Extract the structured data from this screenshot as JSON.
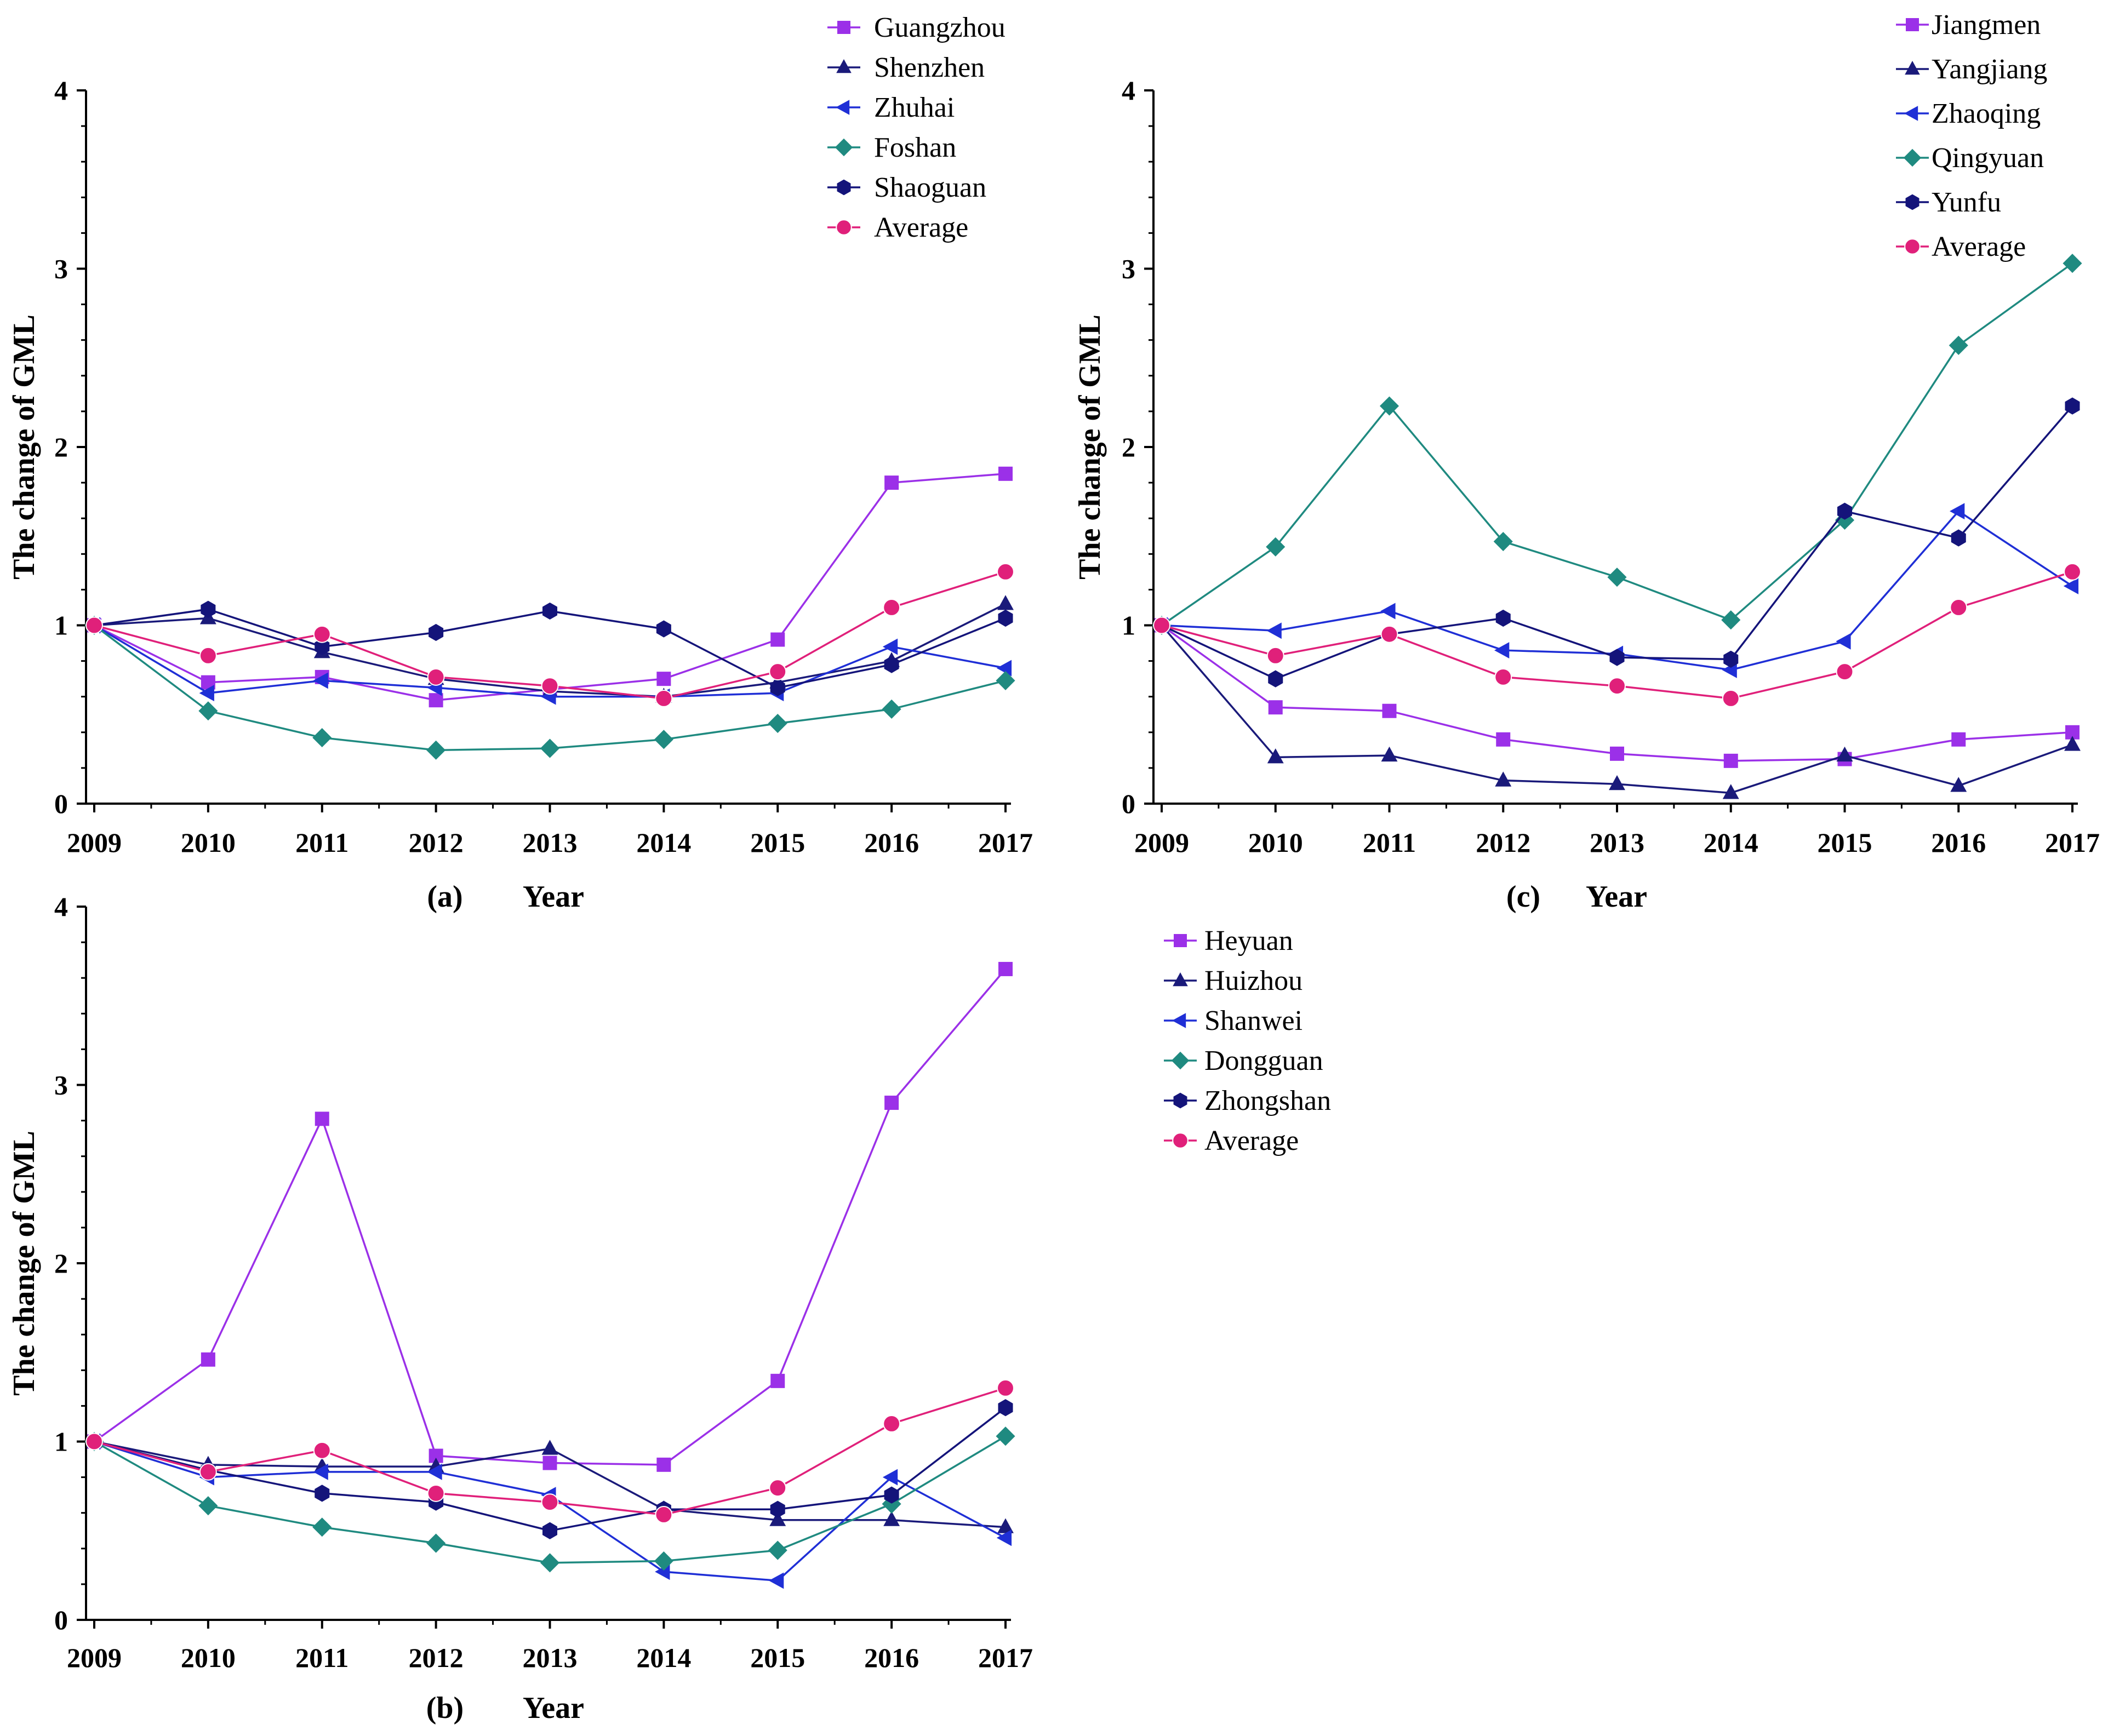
{
  "chart_data": [
    {
      "type": "line",
      "panel_label": "(a)",
      "xlabel": "Year",
      "ylabel": "The change of GML",
      "x": [
        "2009",
        "2010",
        "2011",
        "2012",
        "2013",
        "2014",
        "2015",
        "2016",
        "2017"
      ],
      "ylim": [
        0,
        4
      ],
      "yticks": [
        "0",
        "1",
        "2",
        "3",
        "4"
      ],
      "legend_position": "top-right",
      "series": [
        {
          "name": "Guangzhou",
          "marker": "square",
          "color": "#9b30e8",
          "values": [
            1.0,
            0.68,
            0.71,
            0.58,
            0.64,
            0.7,
            0.92,
            1.8,
            1.85
          ]
        },
        {
          "name": "Shenzhen",
          "marker": "triangle-up",
          "color": "#1a1a7a",
          "values": [
            1.0,
            1.04,
            0.85,
            0.7,
            0.63,
            0.6,
            0.68,
            0.8,
            1.12
          ]
        },
        {
          "name": "Zhuhai",
          "marker": "triangle-left",
          "color": "#1f2fd6",
          "values": [
            1.0,
            0.62,
            0.69,
            0.65,
            0.6,
            0.6,
            0.62,
            0.88,
            0.76
          ]
        },
        {
          "name": "Foshan",
          "marker": "diamond",
          "color": "#1f8a80",
          "values": [
            1.0,
            0.52,
            0.37,
            0.3,
            0.31,
            0.36,
            0.45,
            0.53,
            0.69
          ]
        },
        {
          "name": "Shaoguan",
          "marker": "hexagon",
          "color": "#14147a",
          "values": [
            1.0,
            1.09,
            0.88,
            0.96,
            1.08,
            0.98,
            0.65,
            0.78,
            1.04
          ]
        },
        {
          "name": "Average",
          "marker": "circle",
          "color": "#e0207a",
          "values": [
            1.0,
            0.83,
            0.95,
            0.71,
            0.66,
            0.59,
            0.74,
            1.1,
            1.3
          ]
        }
      ]
    },
    {
      "type": "line",
      "panel_label": "(b)",
      "xlabel": "Year",
      "ylabel": "The change of GML",
      "x": [
        "2009",
        "2010",
        "2011",
        "2012",
        "2013",
        "2014",
        "2015",
        "2016",
        "2017"
      ],
      "ylim": [
        0,
        4
      ],
      "yticks": [
        "0",
        "1",
        "2",
        "3",
        "4"
      ],
      "legend_position": "right",
      "series": [
        {
          "name": "Heyuan",
          "marker": "square",
          "color": "#9b30e8",
          "values": [
            1.0,
            1.46,
            2.81,
            0.92,
            0.88,
            0.87,
            1.34,
            2.9,
            3.65
          ]
        },
        {
          "name": "Huizhou",
          "marker": "triangle-up",
          "color": "#1a1a7a",
          "values": [
            1.0,
            0.87,
            0.86,
            0.86,
            0.96,
            0.62,
            0.56,
            0.56,
            0.52
          ]
        },
        {
          "name": "Shanwei",
          "marker": "triangle-left",
          "color": "#1f2fd6",
          "values": [
            1.0,
            0.8,
            0.83,
            0.83,
            0.7,
            0.27,
            0.22,
            0.8,
            0.46
          ]
        },
        {
          "name": "Dongguan",
          "marker": "diamond",
          "color": "#1f8a80",
          "values": [
            1.0,
            0.64,
            0.52,
            0.43,
            0.32,
            0.33,
            0.39,
            0.65,
            1.03
          ]
        },
        {
          "name": "Zhongshan",
          "marker": "hexagon",
          "color": "#14147a",
          "values": [
            1.0,
            0.84,
            0.71,
            0.66,
            0.5,
            0.62,
            0.62,
            0.7,
            1.19
          ]
        },
        {
          "name": "Average",
          "marker": "circle",
          "color": "#e0207a",
          "values": [
            1.0,
            0.83,
            0.95,
            0.71,
            0.66,
            0.59,
            0.74,
            1.1,
            1.3
          ]
        }
      ]
    },
    {
      "type": "line",
      "panel_label": "(c)",
      "xlabel": "Year",
      "ylabel": "The change of GML",
      "x": [
        "2009",
        "2010",
        "2011",
        "2012",
        "2013",
        "2014",
        "2015",
        "2016",
        "2017"
      ],
      "ylim": [
        0,
        4
      ],
      "yticks": [
        "0",
        "1",
        "2",
        "3",
        "4"
      ],
      "legend_position": "top-right",
      "series": [
        {
          "name": "Jiangmen",
          "marker": "square",
          "color": "#9b30e8",
          "values": [
            1.0,
            0.54,
            0.52,
            0.36,
            0.28,
            0.24,
            0.25,
            0.36,
            0.4
          ]
        },
        {
          "name": "Yangjiang",
          "marker": "triangle-up",
          "color": "#1a1a7a",
          "values": [
            1.0,
            0.26,
            0.27,
            0.13,
            0.11,
            0.06,
            0.27,
            0.1,
            0.33
          ]
        },
        {
          "name": "Zhaoqing",
          "marker": "triangle-left",
          "color": "#1f2fd6",
          "values": [
            1.0,
            0.97,
            1.08,
            0.86,
            0.84,
            0.75,
            0.91,
            1.64,
            1.22
          ]
        },
        {
          "name": "Qingyuan",
          "marker": "diamond",
          "color": "#1f8a80",
          "values": [
            1.0,
            1.44,
            2.23,
            1.47,
            1.27,
            1.03,
            1.59,
            2.57,
            3.03
          ]
        },
        {
          "name": "Yunfu",
          "marker": "hexagon",
          "color": "#14147a",
          "values": [
            1.0,
            0.7,
            0.95,
            1.04,
            0.82,
            0.81,
            1.64,
            1.49,
            2.23
          ]
        },
        {
          "name": "Average",
          "marker": "circle",
          "color": "#e0207a",
          "values": [
            1.0,
            0.83,
            0.95,
            0.71,
            0.66,
            0.59,
            0.74,
            1.1,
            1.3
          ]
        }
      ]
    }
  ]
}
